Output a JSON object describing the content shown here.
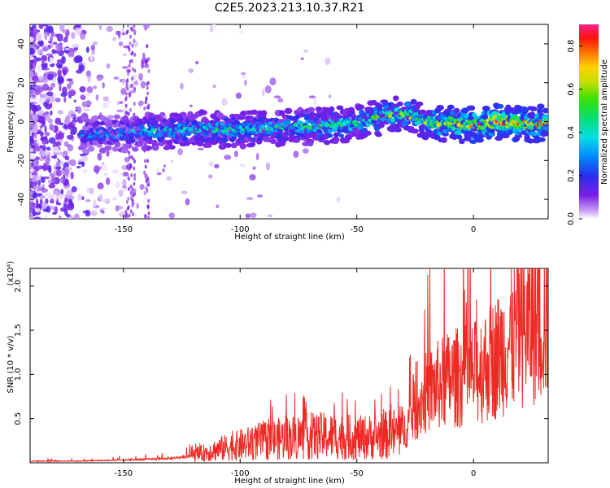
{
  "figure": {
    "title": "C2E5.2023.213.10.37.R21"
  },
  "chart_data": [
    {
      "type": "heatmap",
      "xlabel": "Height of straight line (km)",
      "ylabel": "Frequency (Hz)",
      "xlim": [
        -190,
        32
      ],
      "ylim": [
        -50,
        50
      ],
      "xticks": [
        -150,
        -100,
        -50,
        0
      ],
      "yticks": [
        -40,
        -20,
        0,
        20,
        40
      ],
      "colorbar": {
        "label": "Normalized spectral amplitude",
        "range": [
          0.0,
          0.9
        ],
        "ticks": [
          0.0,
          0.2,
          0.4,
          0.6,
          0.8
        ],
        "colormap": "rainbow (white-violet-blue-cyan-green-yellow-red-magenta)"
      },
      "ridge": {
        "description": "Spectral ridge near 0 Hz drifting from about -8 Hz at -165 km to about +5 Hz near -30 km and ~0 Hz near +30 km",
        "x": [
          -165,
          -150,
          -140,
          -120,
          -100,
          -80,
          -60,
          -50,
          -40,
          -30,
          -20,
          -10,
          0,
          10,
          20,
          30
        ],
        "y": [
          -7,
          -6,
          -5,
          -4,
          -4,
          -3,
          -2,
          -1,
          2,
          4,
          0,
          -1,
          -2,
          0,
          -1,
          -1
        ],
        "peak_amplitude": [
          0.3,
          0.35,
          0.4,
          0.45,
          0.45,
          0.45,
          0.5,
          0.5,
          0.55,
          0.6,
          0.6,
          0.75,
          0.8,
          0.85,
          0.8,
          0.75
        ]
      },
      "grid": false
    },
    {
      "type": "line",
      "xlabel": "Height of straight line (km)",
      "ylabel": "SNR (10 * v/v)",
      "y_scale_label": "(x10⁴)",
      "xlim": [
        -190,
        32
      ],
      "ylim": [
        0,
        2.2
      ],
      "xticks": [
        -150,
        -100,
        -50,
        0
      ],
      "yticks": [
        0.5,
        1.0,
        1.5,
        2.0
      ],
      "series": [
        {
          "color": "#ee2a24",
          "x": [
            -190,
            -170,
            -150,
            -130,
            -120,
            -110,
            -100,
            -90,
            -80,
            -70,
            -60,
            -50,
            -40,
            -30,
            -25,
            -20,
            -10,
            0,
            10,
            20,
            30
          ],
          "y": [
            0.02,
            0.02,
            0.03,
            0.05,
            0.08,
            0.15,
            0.2,
            0.25,
            0.28,
            0.3,
            0.3,
            0.28,
            0.3,
            0.35,
            0.6,
            0.8,
            0.95,
            1.0,
            1.2,
            1.5,
            1.65
          ]
        }
      ],
      "grid": false
    }
  ]
}
